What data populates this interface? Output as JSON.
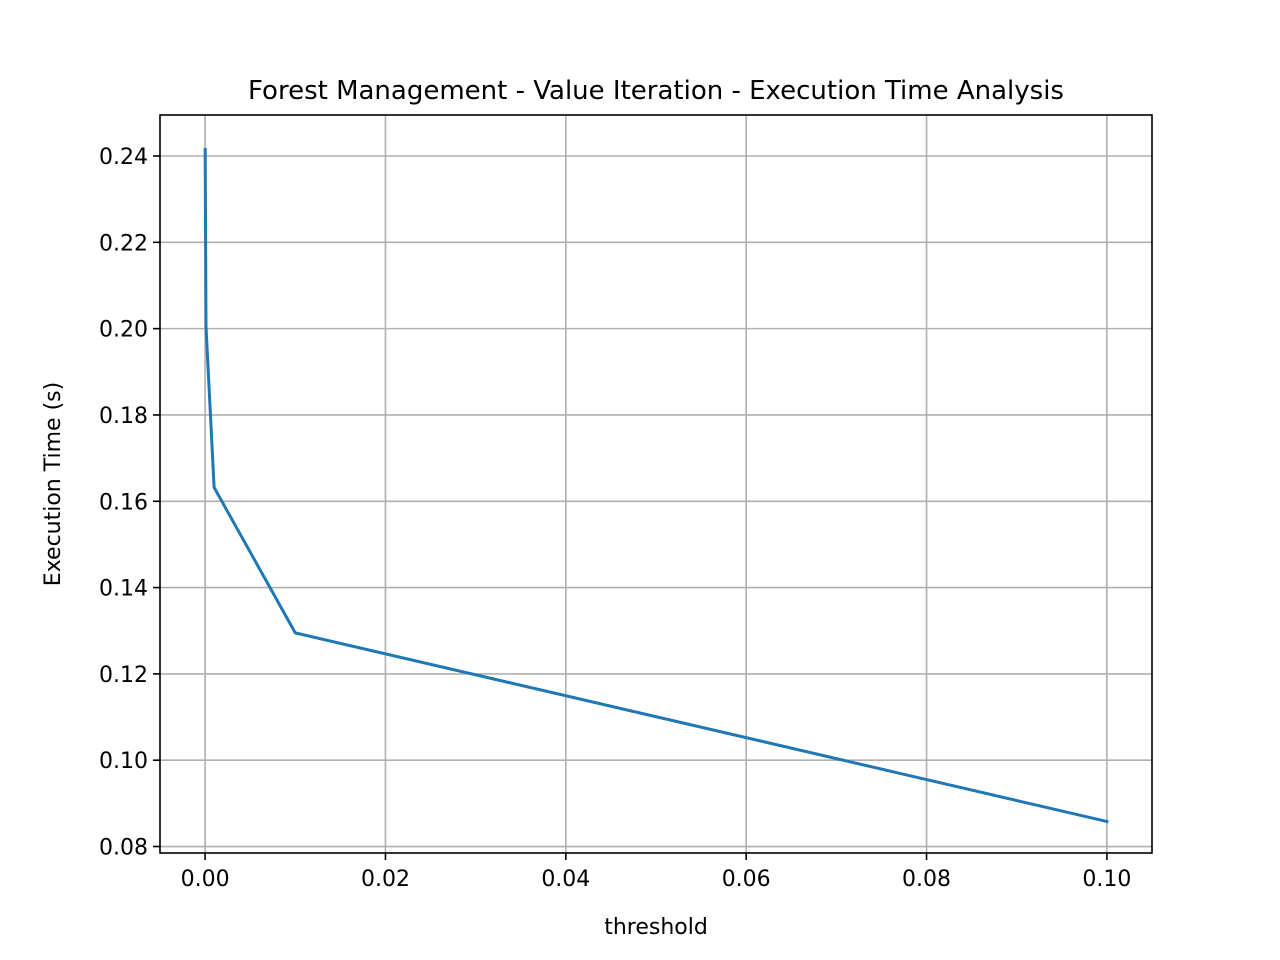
{
  "chart_data": {
    "type": "line",
    "title": "Forest Management - Value Iteration - Execution Time Analysis",
    "xlabel": "threshold",
    "ylabel": "Execution Time (s)",
    "xlim": [
      -0.005,
      0.105
    ],
    "ylim": [
      0.0785,
      0.2495
    ],
    "xticks": [
      0.0,
      0.02,
      0.04,
      0.06,
      0.08,
      0.1
    ],
    "xtick_labels": [
      "0.00",
      "0.02",
      "0.04",
      "0.06",
      "0.08",
      "0.10"
    ],
    "yticks": [
      0.08,
      0.1,
      0.12,
      0.14,
      0.16,
      0.18,
      0.2,
      0.22,
      0.24
    ],
    "ytick_labels": [
      "0.08",
      "0.10",
      "0.12",
      "0.14",
      "0.16",
      "0.18",
      "0.20",
      "0.22",
      "0.24"
    ],
    "grid": true,
    "series": [
      {
        "color": "#1f77b4",
        "x": [
          1e-05,
          0.0001,
          0.001,
          0.01,
          0.1
        ],
        "y": [
          0.2415,
          0.2005,
          0.1632,
          0.1295,
          0.0858
        ]
      }
    ]
  }
}
